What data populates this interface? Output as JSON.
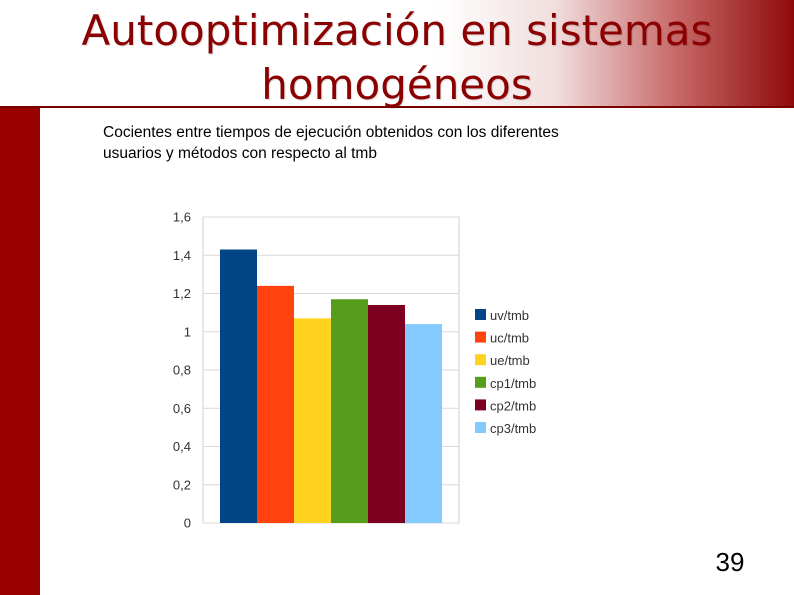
{
  "slide": {
    "title_line1": "Autooptimización en sistemas",
    "title_line2": "homogéneos",
    "caption_line1": "Cocientes entre tiempos de ejecución obtenidos con los diferentes",
    "caption_line2": "usuarios y métodos con respecto al tmb",
    "page_number": "39",
    "colors": {
      "accent": "#8b0000",
      "sidebar": "#990000"
    }
  },
  "chart_data": {
    "type": "bar",
    "title": "",
    "xlabel": "",
    "ylabel": "",
    "ylim": [
      0,
      1.6
    ],
    "yticks": [
      "0",
      "0,2",
      "0,4",
      "0,6",
      "0,8",
      "1",
      "1,2",
      "1,4",
      "1,6"
    ],
    "ytick_values": [
      0,
      0.2,
      0.4,
      0.6,
      0.8,
      1.0,
      1.2,
      1.4,
      1.6
    ],
    "grid": true,
    "legend_position": "right",
    "series": [
      {
        "name": "uv/tmb",
        "value": 1.43,
        "color": "#004586"
      },
      {
        "name": "uc/tmb",
        "value": 1.24,
        "color": "#ff420e"
      },
      {
        "name": "ue/tmb",
        "value": 1.07,
        "color": "#ffd320"
      },
      {
        "name": "cp1/tmb",
        "value": 1.17,
        "color": "#579d1c"
      },
      {
        "name": "cp2/tmb",
        "value": 1.14,
        "color": "#7e0021"
      },
      {
        "name": "cp3/tmb",
        "value": 1.04,
        "color": "#83caff"
      }
    ]
  }
}
